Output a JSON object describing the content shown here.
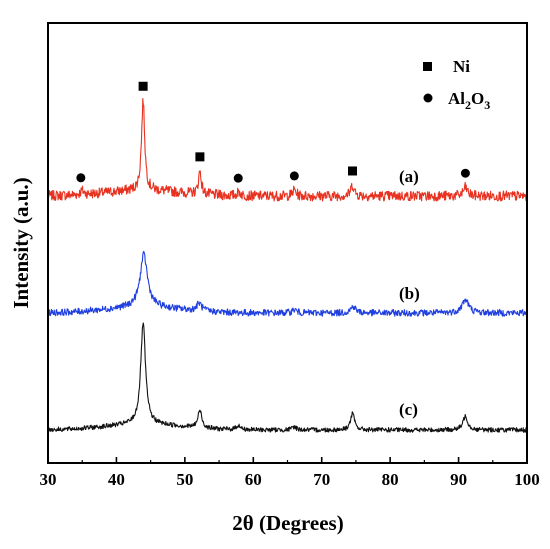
{
  "chart_data": {
    "type": "line",
    "xlabel": "2θ (Degrees)",
    "ylabel": "Intensity (a.u.)",
    "xlim": [
      30,
      100
    ],
    "xticks": [
      30,
      40,
      50,
      60,
      70,
      80,
      90,
      100
    ],
    "grid": false,
    "legend": {
      "placement": "top-right",
      "entries": [
        {
          "marker": "square",
          "label": "Ni"
        },
        {
          "marker": "circle",
          "label_main": "Al",
          "sub1": "2",
          "mid": "O",
          "sub2": "3"
        }
      ]
    },
    "series": [
      {
        "label": "(a)",
        "color": "#e8311f",
        "baseline": 0.92,
        "peaks": [
          {
            "x": 35.0,
            "height": 0.35,
            "width": 0.3
          },
          {
            "x": 43.9,
            "height": 8.2,
            "width": 0.28
          },
          {
            "x": 52.2,
            "height": 2.1,
            "width": 0.25
          },
          {
            "x": 57.9,
            "height": 0.35,
            "width": 0.3
          },
          {
            "x": 66.0,
            "height": 0.55,
            "width": 0.3
          },
          {
            "x": 74.5,
            "height": 1.0,
            "width": 0.3
          },
          {
            "x": 91.0,
            "height": 0.8,
            "width": 0.35
          }
        ]
      },
      {
        "label": "(b)",
        "color": "#1f3fe0",
        "baseline": 0.6,
        "peaks": [
          {
            "x": 44.0,
            "height": 4.8,
            "width": 0.65
          },
          {
            "x": 52.1,
            "height": 0.7,
            "width": 0.45
          },
          {
            "x": 66.0,
            "height": 0.3,
            "width": 0.4
          },
          {
            "x": 74.6,
            "height": 0.6,
            "width": 0.45
          },
          {
            "x": 91.0,
            "height": 1.2,
            "width": 0.6
          }
        ]
      },
      {
        "label": "(c)",
        "color": "#111111",
        "baseline": 0.42,
        "peaks": [
          {
            "x": 43.9,
            "height": 9.2,
            "width": 0.42
          },
          {
            "x": 52.2,
            "height": 1.6,
            "width": 0.35
          },
          {
            "x": 57.8,
            "height": 0.4,
            "width": 0.35
          },
          {
            "x": 66.0,
            "height": 0.3,
            "width": 0.35
          },
          {
            "x": 74.5,
            "height": 1.5,
            "width": 0.35
          },
          {
            "x": 91.0,
            "height": 1.3,
            "width": 0.4
          }
        ]
      }
    ],
    "phase_markers": [
      {
        "phase": "Al2O3",
        "marker": "circle",
        "x": 34.8,
        "series": "(a)"
      },
      {
        "phase": "Ni",
        "marker": "square",
        "x": 43.9,
        "series": "(a)"
      },
      {
        "phase": "Ni",
        "marker": "square",
        "x": 52.2,
        "series": "(a)"
      },
      {
        "phase": "Al2O3",
        "marker": "circle",
        "x": 57.8,
        "series": "(a)"
      },
      {
        "phase": "Al2O3",
        "marker": "circle",
        "x": 66.0,
        "series": "(a)"
      },
      {
        "phase": "Ni",
        "marker": "square",
        "x": 74.5,
        "series": "(a)"
      },
      {
        "phase": "Al2O3",
        "marker": "circle",
        "x": 91.0,
        "series": "(a)"
      }
    ]
  }
}
